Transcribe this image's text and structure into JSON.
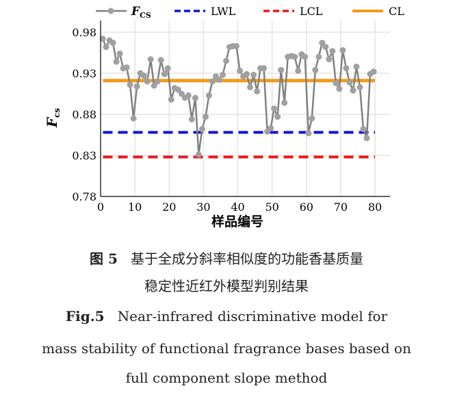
{
  "chart_data": {
    "type": "line",
    "xlabel": "样品编号",
    "ylabel": "F",
    "ylabel_sub": "cs",
    "xlim": [
      0,
      82
    ],
    "ylim": [
      0.78,
      0.98
    ],
    "xticks": [
      0,
      10,
      20,
      30,
      40,
      50,
      60,
      70,
      80
    ],
    "yticks": [
      "0.78",
      "0.83",
      "0.88",
      "0.93",
      "0.98"
    ],
    "grid": true,
    "legend_placement": "top",
    "series": [
      {
        "name": "F",
        "name_sub": "CS",
        "color": "#8c8c8c",
        "values": [
          0.972,
          0.962,
          0.97,
          0.967,
          0.944,
          0.954,
          0.936,
          0.937,
          0.916,
          0.875,
          0.914,
          0.93,
          0.927,
          0.92,
          0.947,
          0.915,
          0.92,
          0.946,
          0.929,
          0.936,
          0.898,
          0.912,
          0.91,
          0.905,
          0.9,
          0.903,
          0.874,
          0.9,
          0.831,
          0.862,
          0.877,
          0.903,
          0.92,
          0.926,
          0.922,
          0.928,
          0.945,
          0.962,
          0.963,
          0.963,
          0.933,
          0.926,
          0.929,
          0.913,
          0.928,
          0.908,
          0.936,
          0.936,
          0.859,
          0.863,
          0.887,
          0.877,
          0.934,
          0.894,
          0.95,
          0.951,
          0.95,
          0.933,
          0.953,
          0.95,
          0.857,
          0.875,
          0.934,
          0.95,
          0.967,
          0.962,
          0.947,
          0.957,
          0.918,
          0.911,
          0.958,
          0.936,
          0.919,
          0.909,
          0.938,
          0.913,
          0.862,
          0.851,
          0.929,
          0.932
        ]
      },
      {
        "name": "LWL",
        "color": "#1010e0",
        "value": 0.858,
        "style": "dashed"
      },
      {
        "name": "LCL",
        "color": "#e81818",
        "value": 0.828,
        "style": "dashed"
      },
      {
        "name": "CL",
        "color": "#f29a1a",
        "value": 0.921,
        "style": "solid"
      }
    ]
  },
  "caption": {
    "cn_label": "图 5",
    "cn_line1": "基于全成分斜率相似度的功能香基质量",
    "cn_line2": "稳定性近红外模型判别结果",
    "en_label": "Fig.5",
    "en_line1": "Near-infrared discriminative model for",
    "en_line2": "mass stability of functional fragrance bases based on",
    "en_line3": "full component slope method"
  }
}
